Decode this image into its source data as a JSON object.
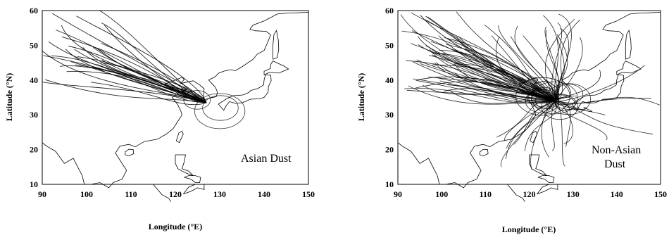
{
  "figure": {
    "panels": [
      {
        "name": "asian-dust",
        "label": [
          "Asian Dust"
        ],
        "xlabel": "Longitude (°E)",
        "ylabel": "Latitude (°N)",
        "xticks": [
          "90",
          "100",
          "110",
          "120",
          "130",
          "140",
          "150"
        ],
        "yticks": [
          "10",
          "20",
          "30",
          "40",
          "50",
          "60"
        ]
      },
      {
        "name": "non-asian-dust",
        "label": [
          "Non-Asian",
          "Dust"
        ],
        "xlabel": "Longitude (°E)",
        "ylabel": "Latitude (°N)",
        "xticks": [
          "90",
          "100",
          "110",
          "120",
          "130",
          "140",
          "150"
        ],
        "yticks": [
          "10",
          "20",
          "30",
          "40",
          "50",
          "60"
        ]
      }
    ]
  },
  "chart_data": [
    {
      "type": "line",
      "xlabel": "Longitude (°E)",
      "ylabel": "Latitude (°N)",
      "xlim": [
        90,
        150
      ],
      "ylim": [
        10,
        60
      ],
      "grid": false,
      "annotations": [
        "Asian Dust"
      ],
      "endpoint": {
        "lon": 127,
        "lat": 33.5
      },
      "trajectory_count_approx": 30
    },
    {
      "type": "line",
      "xlabel": "Longitude (°E)",
      "ylabel": "Latitude (°N)",
      "xlim": [
        90,
        150
      ],
      "ylim": [
        10,
        60
      ],
      "grid": false,
      "annotations": [
        "Non-Asian Dust"
      ],
      "endpoint": {
        "lon": 126,
        "lat": 34
      },
      "trajectory_count_approx": 90
    }
  ]
}
